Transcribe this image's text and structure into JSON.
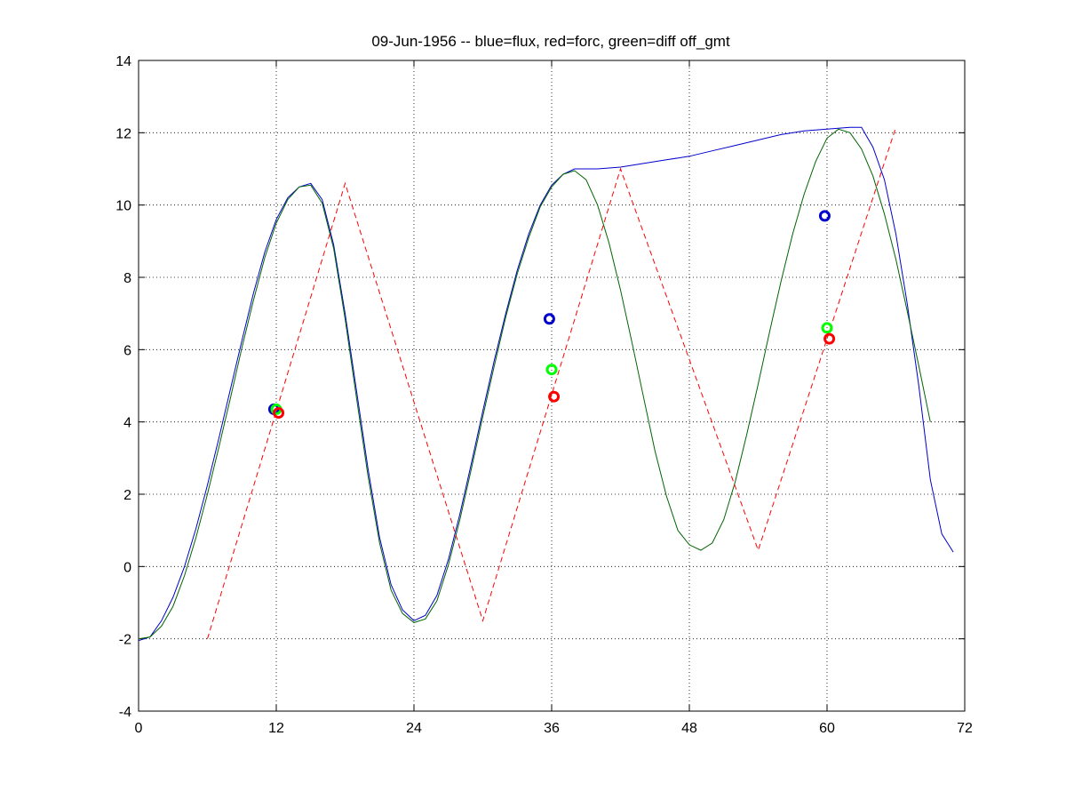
{
  "chart_data": {
    "type": "line",
    "title": "09-Jun-1956 -- blue=flux, red=forc, green=diff off_gmt",
    "xlabel": "",
    "ylabel": "",
    "xlim": [
      0,
      72
    ],
    "ylim": [
      -4,
      14
    ],
    "xticks": [
      0,
      12,
      24,
      36,
      48,
      60,
      72
    ],
    "yticks": [
      -4,
      -2,
      0,
      2,
      4,
      6,
      8,
      10,
      12,
      14
    ],
    "grid": true,
    "colors": {
      "blue": "#0000cc",
      "red": "#ff0000",
      "green": "#006400",
      "bright_green": "#00ff00"
    },
    "series": [
      {
        "name": "flux",
        "color": "#0000cc",
        "style": "solid",
        "points": [
          [
            0,
            -2.05
          ],
          [
            1,
            -1.95
          ],
          [
            2,
            -1.5
          ],
          [
            3,
            -0.85
          ],
          [
            4,
            0.0
          ],
          [
            5,
            1.05
          ],
          [
            6,
            2.25
          ],
          [
            7,
            3.55
          ],
          [
            8,
            4.9
          ],
          [
            9,
            6.25
          ],
          [
            10,
            7.55
          ],
          [
            11,
            8.7
          ],
          [
            12,
            9.6
          ],
          [
            13,
            10.2
          ],
          [
            14,
            10.5
          ],
          [
            15,
            10.6
          ],
          [
            16,
            10.15
          ],
          [
            17,
            8.9
          ],
          [
            18,
            7.0
          ],
          [
            19,
            4.85
          ],
          [
            20,
            2.7
          ],
          [
            21,
            0.8
          ],
          [
            22,
            -0.5
          ],
          [
            23,
            -1.2
          ],
          [
            24,
            -1.5
          ],
          [
            25,
            -1.35
          ],
          [
            26,
            -0.8
          ],
          [
            27,
            0.2
          ],
          [
            28,
            1.45
          ],
          [
            29,
            2.85
          ],
          [
            30,
            4.3
          ],
          [
            31,
            5.7
          ],
          [
            32,
            7.0
          ],
          [
            33,
            8.2
          ],
          [
            34,
            9.2
          ],
          [
            35,
            10.0
          ],
          [
            36,
            10.55
          ],
          [
            37,
            10.85
          ],
          [
            38,
            11.0
          ],
          [
            40,
            11.0
          ],
          [
            42,
            11.05
          ],
          [
            44,
            11.15
          ],
          [
            46,
            11.25
          ],
          [
            48,
            11.35
          ],
          [
            50,
            11.5
          ],
          [
            52,
            11.65
          ],
          [
            54,
            11.8
          ],
          [
            56,
            11.95
          ],
          [
            58,
            12.05
          ],
          [
            60,
            12.1
          ],
          [
            62,
            12.15
          ],
          [
            63,
            12.15
          ],
          [
            64,
            11.6
          ],
          [
            65,
            10.7
          ],
          [
            66,
            9.2
          ],
          [
            67,
            7.25
          ],
          [
            68,
            5.0
          ],
          [
            69,
            2.4
          ],
          [
            70,
            0.9
          ],
          [
            71,
            0.4
          ]
        ]
      },
      {
        "name": "diff",
        "color": "#006400",
        "style": "solid",
        "points": [
          [
            0,
            -2.0
          ],
          [
            1,
            -1.95
          ],
          [
            2,
            -1.65
          ],
          [
            3,
            -1.1
          ],
          [
            4,
            -0.25
          ],
          [
            5,
            0.8
          ],
          [
            6,
            2.0
          ],
          [
            7,
            3.3
          ],
          [
            8,
            4.65
          ],
          [
            9,
            6.05
          ],
          [
            10,
            7.35
          ],
          [
            11,
            8.55
          ],
          [
            12,
            9.5
          ],
          [
            13,
            10.15
          ],
          [
            14,
            10.5
          ],
          [
            15,
            10.55
          ],
          [
            16,
            10.05
          ],
          [
            17,
            8.8
          ],
          [
            18,
            6.85
          ],
          [
            19,
            4.65
          ],
          [
            20,
            2.5
          ],
          [
            21,
            0.65
          ],
          [
            22,
            -0.65
          ],
          [
            23,
            -1.3
          ],
          [
            24,
            -1.55
          ],
          [
            25,
            -1.45
          ],
          [
            26,
            -0.95
          ],
          [
            27,
            0.05
          ],
          [
            28,
            1.3
          ],
          [
            29,
            2.7
          ],
          [
            30,
            4.15
          ],
          [
            31,
            5.55
          ],
          [
            32,
            6.9
          ],
          [
            33,
            8.1
          ],
          [
            34,
            9.1
          ],
          [
            35,
            9.95
          ],
          [
            36,
            10.5
          ],
          [
            37,
            10.85
          ],
          [
            38,
            10.95
          ],
          [
            39,
            10.7
          ],
          [
            40,
            10.0
          ],
          [
            41,
            8.95
          ],
          [
            42,
            7.65
          ],
          [
            43,
            6.2
          ],
          [
            44,
            4.7
          ],
          [
            45,
            3.2
          ],
          [
            46,
            1.95
          ],
          [
            47,
            1.0
          ],
          [
            48,
            0.6
          ],
          [
            49,
            0.45
          ],
          [
            50,
            0.65
          ],
          [
            51,
            1.3
          ],
          [
            52,
            2.35
          ],
          [
            53,
            3.65
          ],
          [
            54,
            5.05
          ],
          [
            55,
            6.5
          ],
          [
            56,
            7.9
          ],
          [
            57,
            9.2
          ],
          [
            58,
            10.3
          ],
          [
            59,
            11.2
          ],
          [
            60,
            11.85
          ],
          [
            61,
            12.1
          ],
          [
            62,
            12.0
          ],
          [
            63,
            11.55
          ],
          [
            64,
            10.8
          ],
          [
            65,
            9.75
          ],
          [
            66,
            8.5
          ],
          [
            67,
            7.05
          ],
          [
            68,
            5.55
          ],
          [
            69,
            4.0
          ]
        ]
      },
      {
        "name": "forc",
        "color": "#ff0000",
        "style": "dashed",
        "points": [
          [
            6,
            -2.0
          ],
          [
            18,
            10.6
          ],
          [
            30,
            -1.5
          ],
          [
            42,
            11.0
          ],
          [
            54,
            0.45
          ],
          [
            66,
            12.15
          ]
        ]
      }
    ],
    "markers": [
      {
        "name": "flux",
        "color": "#0000cc",
        "points": [
          [
            11.8,
            4.35
          ],
          [
            35.8,
            6.85
          ],
          [
            59.8,
            9.7
          ]
        ]
      },
      {
        "name": "diff",
        "color": "#00ff00",
        "points": [
          [
            12.0,
            4.35
          ],
          [
            36.0,
            5.45
          ],
          [
            60.0,
            6.6
          ]
        ]
      },
      {
        "name": "forc",
        "color": "#ff0000",
        "points": [
          [
            12.2,
            4.25
          ],
          [
            36.2,
            4.7
          ],
          [
            60.2,
            6.3
          ]
        ]
      }
    ]
  }
}
